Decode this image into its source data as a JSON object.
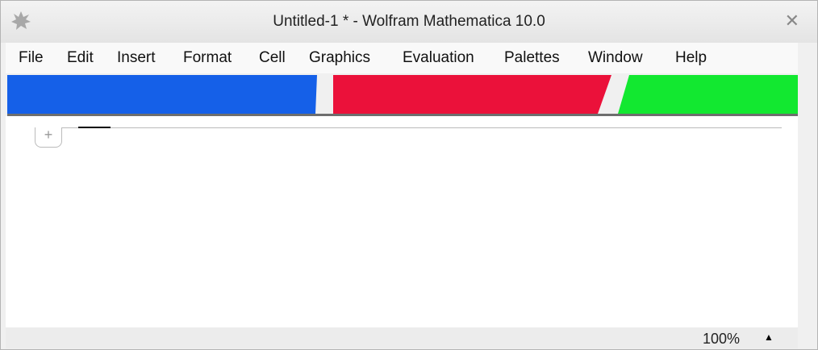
{
  "window": {
    "title": "Untitled-1 * - Wolfram Mathematica 10.0",
    "close_icon": "close-icon",
    "app_icon": "mathematica-spikey-icon"
  },
  "menubar": {
    "items": [
      {
        "label": "File"
      },
      {
        "label": "Edit"
      },
      {
        "label": "Insert"
      },
      {
        "label": "Format"
      },
      {
        "label": "Cell"
      },
      {
        "label": "Graphics"
      },
      {
        "label": "Evaluation"
      },
      {
        "label": "Palettes"
      },
      {
        "label": "Window"
      },
      {
        "label": "Help"
      }
    ]
  },
  "toolbar": {
    "colors": {
      "blue": "#1560e8",
      "red": "#eb113a",
      "green": "#12e830"
    }
  },
  "document": {
    "insert_cell_label": "+"
  },
  "status": {
    "zoom": "100%",
    "zoom_menu_icon": "triangle-up-icon"
  }
}
